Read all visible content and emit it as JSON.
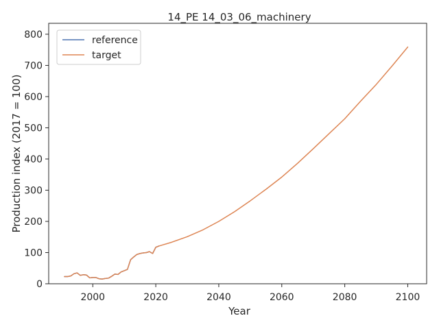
{
  "chart_data": {
    "type": "line",
    "title": "14_PE 14_03_06_machinery",
    "xlabel": "Year",
    "ylabel": "Production index (2017 = 100)",
    "xlim": [
      1986,
      2106
    ],
    "ylim": [
      0,
      835
    ],
    "xticks": [
      2000,
      2020,
      2040,
      2060,
      2080,
      2100
    ],
    "yticks": [
      0,
      100,
      200,
      300,
      400,
      500,
      600,
      700,
      800
    ],
    "grid": false,
    "legend_position": "upper left",
    "series": [
      {
        "name": "reference",
        "color": "#4c72b0",
        "x": [
          1991,
          1992,
          1993,
          1994,
          1995,
          1996,
          1997,
          1998,
          1999,
          2000,
          2001,
          2002,
          2003,
          2004,
          2005,
          2006,
          2007,
          2008,
          2009,
          2010,
          2011,
          2012,
          2013,
          2014,
          2015,
          2016,
          2017,
          2018,
          2019,
          2020,
          2021
        ],
        "y": [
          23,
          23,
          25,
          32,
          35,
          27,
          29,
          28,
          19,
          20,
          20,
          16,
          15,
          17,
          18,
          24,
          31,
          30,
          38,
          42,
          46,
          77,
          86,
          94,
          97,
          99,
          100,
          103,
          97,
          117,
          121
        ]
      },
      {
        "name": "target",
        "color": "#dd8452",
        "x": [
          1991,
          1992,
          1993,
          1994,
          1995,
          1996,
          1997,
          1998,
          1999,
          2000,
          2001,
          2002,
          2003,
          2004,
          2005,
          2006,
          2007,
          2008,
          2009,
          2010,
          2011,
          2012,
          2013,
          2014,
          2015,
          2016,
          2017,
          2018,
          2019,
          2020,
          2021,
          2025,
          2030,
          2035,
          2040,
          2045,
          2050,
          2055,
          2060,
          2065,
          2070,
          2075,
          2080,
          2085,
          2090,
          2095,
          2100
        ],
        "y": [
          23,
          23,
          25,
          32,
          35,
          27,
          29,
          28,
          19,
          20,
          20,
          16,
          15,
          17,
          18,
          24,
          31,
          30,
          38,
          42,
          46,
          77,
          86,
          94,
          97,
          99,
          100,
          103,
          97,
          117,
          121,
          133,
          151,
          173,
          200,
          231,
          266,
          303,
          342,
          386,
          433,
          481,
          529,
          585,
          639,
          698,
          759
        ]
      }
    ]
  }
}
